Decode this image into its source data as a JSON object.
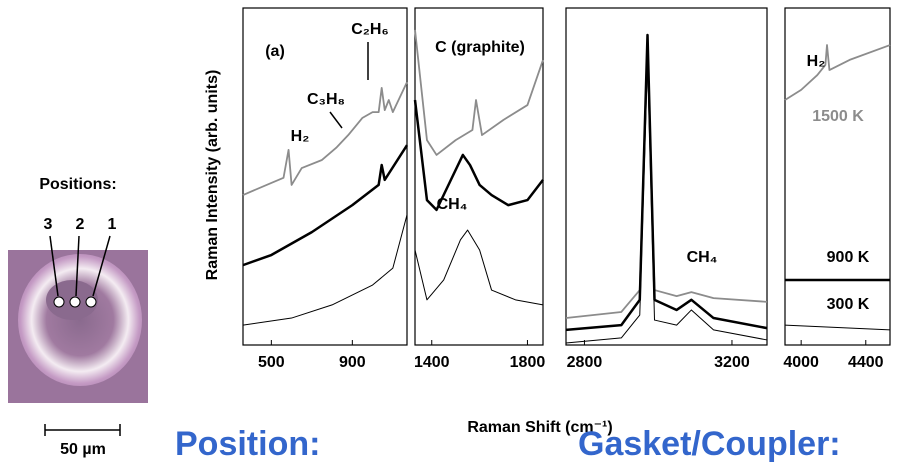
{
  "figure": {
    "y_label": "Raman Intensity (arb. units)",
    "x_label": "Raman Shift (cm⁻¹)",
    "positions_title": "Positions:",
    "position_numbers": [
      "3",
      "2",
      "1"
    ],
    "scale_bar": "50 µm",
    "position_heading": "Position:",
    "gasket_heading": "Gasket/Coupler:"
  },
  "chart_data": [
    {
      "type": "line",
      "xlim": [
        360,
        1170
      ],
      "xticks": [
        500,
        900
      ],
      "ylim": [
        0,
        100
      ],
      "annotations": [
        "(a)",
        "C₂H₆",
        "C₃H₈",
        "H₂"
      ],
      "series": [
        {
          "color": "#8c8c8c",
          "x": [
            360,
            500,
            560,
            585,
            600,
            650,
            750,
            820,
            880,
            950,
            1000,
            1030,
            1045,
            1060,
            1080,
            1100,
            1170
          ],
          "values": [
            44.5,
            48.1,
            49.6,
            57.9,
            47.5,
            52.5,
            54.9,
            58.5,
            62.3,
            67.4,
            69.1,
            69.1,
            76.3,
            69.7,
            72.7,
            69.1,
            78.0
          ]
        },
        {
          "color": "#000000",
          "x": [
            360,
            500,
            700,
            900,
            1030,
            1045,
            1060,
            1170
          ],
          "values": [
            23.7,
            26.7,
            33.5,
            41.5,
            47.5,
            53.4,
            49.0,
            59.3
          ]
        },
        {
          "color": "#000000",
          "x": [
            360,
            600,
            800,
            1000,
            1100,
            1170
          ],
          "values": [
            5.9,
            8.0,
            11.9,
            17.8,
            22.8,
            38.6
          ]
        }
      ]
    },
    {
      "type": "line",
      "xlim": [
        1330,
        1865
      ],
      "xticks": [
        1400,
        1800
      ],
      "ylim": [
        0,
        100
      ],
      "annotations": [
        "C (graphite)",
        "CH₄"
      ],
      "series": [
        {
          "color": "#8c8c8c",
          "x": [
            1330,
            1380,
            1420,
            1500,
            1570,
            1585,
            1610,
            1700,
            1800,
            1865
          ],
          "values": [
            93.5,
            60.8,
            56.4,
            60.8,
            63.8,
            72.7,
            62.3,
            66.8,
            71.2,
            84.6
          ]
        },
        {
          "color": "#000000",
          "x": [
            1330,
            1380,
            1420,
            1480,
            1530,
            1560,
            1600,
            1650,
            1720,
            1800,
            1865
          ],
          "values": [
            72.7,
            43.0,
            40.1,
            49.0,
            56.4,
            53.4,
            47.5,
            44.5,
            41.5,
            43.0,
            49.0
          ]
        },
        {
          "color": "#000000",
          "x": [
            1330,
            1380,
            1450,
            1520,
            1550,
            1600,
            1650,
            1750,
            1865
          ],
          "values": [
            28.2,
            13.4,
            19.3,
            31.2,
            34.1,
            28.2,
            16.3,
            13.4,
            11.9
          ]
        }
      ]
    },
    {
      "type": "line",
      "xlim": [
        2750,
        3295
      ],
      "xticks": [
        2800,
        3200
      ],
      "ylim": [
        0,
        100
      ],
      "annotations": [
        "CH₄"
      ],
      "series": [
        {
          "color": "#8c8c8c",
          "x": [
            2750,
            2900,
            2950,
            2971,
            2990,
            3050,
            3090,
            3150,
            3295
          ],
          "values": [
            8.0,
            9.8,
            16.3,
            89.0,
            16.3,
            14.5,
            15.7,
            13.9,
            12.8
          ]
        },
        {
          "color": "#000000",
          "x": [
            2750,
            2900,
            2950,
            2971,
            2990,
            3050,
            3090,
            3150,
            3295
          ],
          "values": [
            4.5,
            5.9,
            13.4,
            92.0,
            13.4,
            10.4,
            13.4,
            8.0,
            5.0
          ]
        },
        {
          "color": "#000000",
          "x": [
            2750,
            2900,
            2950,
            2971,
            2990,
            3050,
            3090,
            3150,
            3295
          ],
          "values": [
            0.6,
            2.1,
            8.9,
            84.6,
            7.4,
            5.9,
            10.4,
            4.5,
            1.5
          ]
        }
      ]
    },
    {
      "type": "line",
      "xlim": [
        3900,
        4550
      ],
      "xticks": [
        4000,
        4400
      ],
      "ylim": [
        0,
        100
      ],
      "annotations": [
        "H₂"
      ],
      "series": [
        {
          "name": "1500 K",
          "color": "#8c8c8c",
          "x": [
            3900,
            4000,
            4100,
            4150,
            4160,
            4175,
            4300,
            4550
          ],
          "values": [
            72.7,
            75.7,
            80.1,
            83.1,
            89.0,
            81.6,
            84.6,
            89.0
          ]
        },
        {
          "name": "900 K",
          "color": "#000000",
          "x": [
            3900,
            4550
          ],
          "values": [
            19.3,
            19.3
          ]
        },
        {
          "name": "300 K",
          "color": "#000000",
          "x": [
            3900,
            4550
          ],
          "values": [
            5.9,
            4.5
          ]
        }
      ]
    }
  ]
}
